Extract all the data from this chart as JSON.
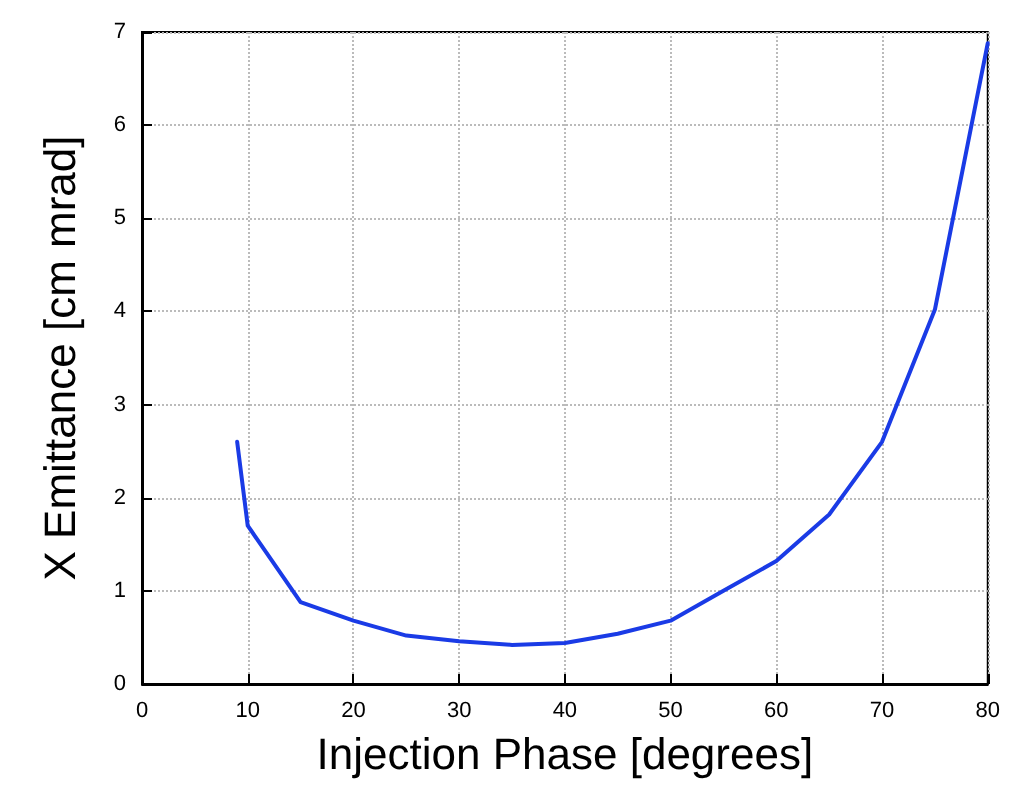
{
  "chart_data": {
    "type": "line",
    "xlabel": "Injection Phase [degrees]",
    "ylabel": "X Emittance [cm mrad]",
    "x": [
      9,
      10,
      15,
      20,
      25,
      30,
      35,
      40,
      45,
      50,
      55,
      60,
      65,
      70,
      75,
      80
    ],
    "series": [
      {
        "color": "#1a3be6",
        "values": [
          2.6,
          1.7,
          0.88,
          0.68,
          0.52,
          0.46,
          0.42,
          0.44,
          0.54,
          0.68,
          1.0,
          1.32,
          1.82,
          2.6,
          4.02,
          6.88
        ]
      }
    ],
    "xlim": [
      0,
      80
    ],
    "xticks": [
      0,
      10,
      20,
      30,
      40,
      50,
      60,
      70,
      80
    ],
    "ylim": [
      0,
      7
    ],
    "yticks": [
      0,
      1,
      2,
      3,
      4,
      5,
      6,
      7
    ],
    "grid": true,
    "marker": "none",
    "line_style": "solid"
  }
}
